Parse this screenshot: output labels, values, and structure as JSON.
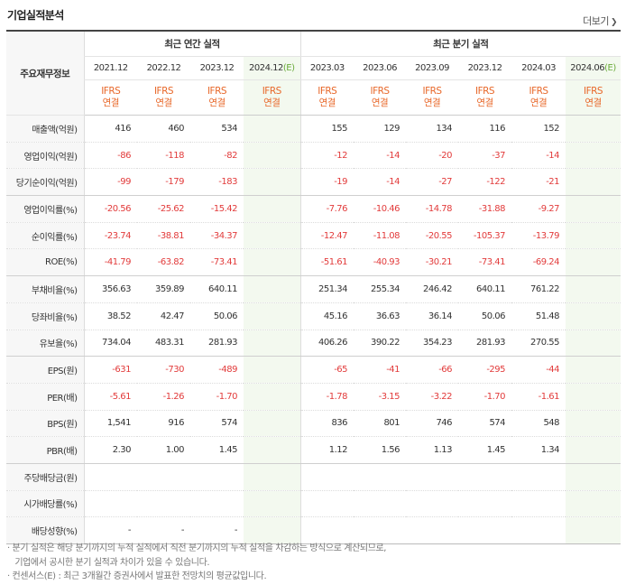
{
  "title": "기업실적분석",
  "more_label": "더보기",
  "more_chevron": "❯",
  "corner_label": "주요재무정보",
  "groups": {
    "annual": "최근 연간 실적",
    "quarter": "최근 분기 실적"
  },
  "periods": [
    "2021.12",
    "2022.12",
    "2023.12",
    "2024.12",
    "2023.03",
    "2023.06",
    "2023.09",
    "2023.12",
    "2024.03",
    "2024.06"
  ],
  "estimate_marker": "(E)",
  "ifrs_line1": "IFRS",
  "ifrs_line2": "연결",
  "rows": [
    {
      "label": "매출액(억원)",
      "values": [
        "416",
        "460",
        "534",
        "",
        "155",
        "129",
        "134",
        "116",
        "152",
        ""
      ]
    },
    {
      "label": "영업이익(억원)",
      "values": [
        "-86",
        "-118",
        "-82",
        "",
        "-12",
        "-14",
        "-20",
        "-37",
        "-14",
        ""
      ]
    },
    {
      "label": "당기순이익(억원)",
      "values": [
        "-99",
        "-179",
        "-183",
        "",
        "-19",
        "-14",
        "-27",
        "-122",
        "-21",
        ""
      ]
    },
    {
      "label": "영업이익률(%)",
      "values": [
        "-20.56",
        "-25.62",
        "-15.42",
        "",
        "-7.76",
        "-10.46",
        "-14.78",
        "-31.88",
        "-9.27",
        ""
      ]
    },
    {
      "label": "순이익률(%)",
      "values": [
        "-23.74",
        "-38.81",
        "-34.37",
        "",
        "-12.47",
        "-11.08",
        "-20.55",
        "-105.37",
        "-13.79",
        ""
      ]
    },
    {
      "label": "ROE(%)",
      "values": [
        "-41.79",
        "-63.82",
        "-73.41",
        "",
        "-51.61",
        "-40.93",
        "-30.21",
        "-73.41",
        "-69.24",
        ""
      ]
    },
    {
      "label": "부채비율(%)",
      "values": [
        "356.63",
        "359.89",
        "640.11",
        "",
        "251.34",
        "255.34",
        "246.42",
        "640.11",
        "761.22",
        ""
      ]
    },
    {
      "label": "당좌비율(%)",
      "values": [
        "38.52",
        "42.47",
        "50.06",
        "",
        "45.16",
        "36.63",
        "36.14",
        "50.06",
        "51.48",
        ""
      ]
    },
    {
      "label": "유보율(%)",
      "values": [
        "734.04",
        "483.31",
        "281.93",
        "",
        "406.26",
        "390.22",
        "354.23",
        "281.93",
        "270.55",
        ""
      ]
    },
    {
      "label": "EPS(원)",
      "values": [
        "-631",
        "-730",
        "-489",
        "",
        "-65",
        "-41",
        "-66",
        "-295",
        "-44",
        ""
      ]
    },
    {
      "label": "PER(배)",
      "values": [
        "-5.61",
        "-1.26",
        "-1.70",
        "",
        "-1.78",
        "-3.15",
        "-3.22",
        "-1.70",
        "-1.61",
        ""
      ]
    },
    {
      "label": "BPS(원)",
      "values": [
        "1,541",
        "916",
        "574",
        "",
        "836",
        "801",
        "746",
        "574",
        "548",
        ""
      ]
    },
    {
      "label": "PBR(배)",
      "values": [
        "2.30",
        "1.00",
        "1.45",
        "",
        "1.12",
        "1.56",
        "1.13",
        "1.45",
        "1.34",
        ""
      ]
    },
    {
      "label": "주당배당금(원)",
      "values": [
        "",
        "",
        "",
        "",
        "",
        "",
        "",
        "",
        "",
        ""
      ]
    },
    {
      "label": "시가배당률(%)",
      "values": [
        "",
        "",
        "",
        "",
        "",
        "",
        "",
        "",
        "",
        ""
      ]
    },
    {
      "label": "배당성향(%)",
      "values": [
        "-",
        "-",
        "-",
        "",
        "",
        "",
        "",
        "",
        "",
        ""
      ]
    }
  ],
  "notes": [
    "· 분기 실적은 해당 분기까지의 누적 실적에서 직전 분기까지의 누적 실적을 차감하는 방식으로 계산되므로,",
    "   기업에서 공시한 분기 실적과 차이가 있을 수 있습니다.",
    "· 컨센서스(E) : 최근 3개월간 증권사에서 발표한 전망치의 평균값입니다."
  ],
  "colors": {
    "negative": "#e23b3b",
    "ifrs": "#e8682a",
    "estimate_bg": "#f3f9ef",
    "estimate_mark": "#6aab3a"
  }
}
